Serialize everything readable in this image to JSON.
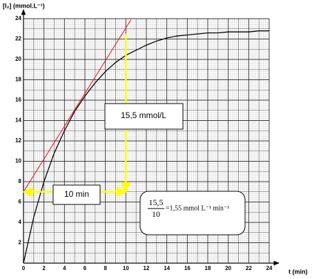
{
  "chart_data": {
    "type": "line",
    "y_label": "[I₂] (mmol.L⁻¹)",
    "x_label": "t (min)",
    "xlim": [
      0,
      24
    ],
    "ylim": [
      0,
      24
    ],
    "xticks": [
      0,
      2,
      4,
      6,
      8,
      10,
      12,
      14,
      16,
      18,
      20,
      22,
      24
    ],
    "yticks": [
      2,
      4,
      6,
      8,
      10,
      12,
      14,
      16,
      18,
      20,
      22,
      24
    ],
    "grid": true,
    "series": [
      {
        "name": "[I₂]",
        "color": "#000000",
        "x": [
          0,
          1,
          2,
          3,
          4,
          5,
          6,
          7,
          8,
          9,
          10,
          11,
          12,
          13,
          14,
          15,
          16,
          17,
          18,
          19,
          20,
          21,
          22,
          23,
          24
        ],
        "values": [
          0,
          4.5,
          8,
          10.8,
          13,
          14.9,
          16.4,
          17.7,
          18.8,
          19.7,
          20.4,
          20.9,
          21.4,
          21.8,
          22.1,
          22.3,
          22.4,
          22.5,
          22.6,
          22.6,
          22.7,
          22.7,
          22.7,
          22.8,
          22.8
        ]
      },
      {
        "name": "tangent",
        "color": "#ff0000",
        "x": [
          0,
          10.5
        ],
        "values": [
          7,
          23.9
        ]
      }
    ],
    "measure": {
      "color": "#ffff00",
      "x": [
        0,
        10
      ],
      "y": [
        7,
        22.5
      ],
      "dy_label": "15,5 mmol/L",
      "dx_label": "10 min"
    },
    "formula": {
      "numerator": "15,5",
      "denominator": "10",
      "result": "=1,55 mmol L⁻¹ min⁻¹"
    }
  }
}
